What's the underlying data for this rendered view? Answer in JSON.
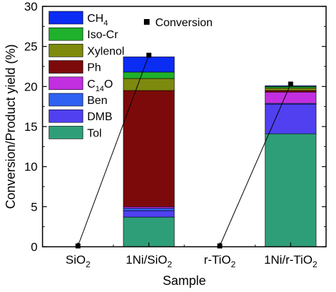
{
  "chart_data": {
    "type": "bar",
    "stacked": true,
    "xlabel": "Sample",
    "ylabel": "Conversion/Product yield (%)",
    "ylim": [
      0,
      30
    ],
    "yticks": [
      0,
      5,
      10,
      15,
      20,
      25,
      30
    ],
    "grid": false,
    "legend_position": "top-left",
    "categories": [
      {
        "main": "SiO",
        "sub": "2",
        "tail": ""
      },
      {
        "main": "1Ni/SiO",
        "sub": "2",
        "tail": ""
      },
      {
        "main": "r-TiO",
        "sub": "2",
        "tail": ""
      },
      {
        "main": "1Ni/r-TiO",
        "sub": "2",
        "tail": ""
      }
    ],
    "series": [
      {
        "name": "Tol",
        "label_main": "Tol",
        "label_sub": "",
        "color": "#2e9e79",
        "values": [
          0,
          3.7,
          0,
          14.1
        ]
      },
      {
        "name": "DMB",
        "label_main": "DMB",
        "label_sub": "",
        "color": "#5040f0",
        "values": [
          0,
          0.8,
          0,
          3.7
        ]
      },
      {
        "name": "Ben",
        "label_main": "Ben",
        "label_sub": "",
        "color": "#2f62f2",
        "values": [
          0,
          0.3,
          0,
          0.1
        ]
      },
      {
        "name": "C14O",
        "label_main": "C",
        "label_sub": "14",
        "label_tail": "O",
        "color": "#c22fe0",
        "values": [
          0,
          0.2,
          0,
          1.4
        ]
      },
      {
        "name": "Ph",
        "label_main": "Ph",
        "label_sub": "",
        "color": "#7d0a0a",
        "values": [
          0,
          14.5,
          0,
          0.2
        ]
      },
      {
        "name": "Xylenol",
        "label_main": "Xylenol",
        "label_sub": "",
        "color": "#7d8a0e",
        "values": [
          0,
          1.5,
          0,
          0.3
        ]
      },
      {
        "name": "Iso-Cr",
        "label_main": "Iso-Cr",
        "label_sub": "",
        "color": "#1fb12b",
        "values": [
          0,
          0.8,
          0,
          0.2
        ]
      },
      {
        "name": "CH4",
        "label_main": "CH",
        "label_sub": "4",
        "label_tail": "",
        "color": "#0b2cf3",
        "values": [
          0,
          1.9,
          0,
          0.1
        ]
      }
    ],
    "conversion": {
      "name": "Conversion",
      "values": [
        0.1,
        23.9,
        0.1,
        20.3
      ]
    }
  }
}
